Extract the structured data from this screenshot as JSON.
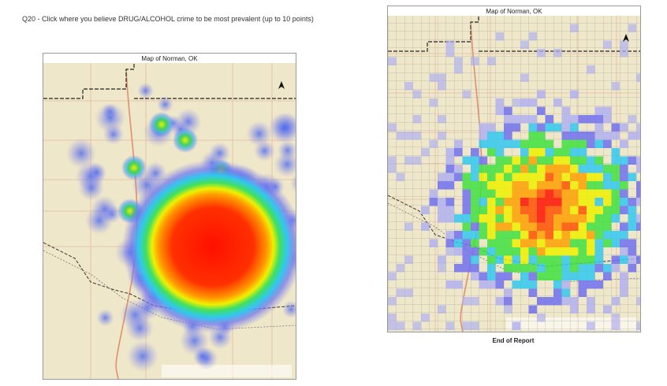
{
  "question": {
    "text": "Q20 - Click where you believe DRUG/ALCOHOL crime to be most prevalent (up to 10 points)"
  },
  "heat_map": {
    "title": "Map of Norman, OK"
  },
  "grid_map": {
    "title": "Map of Norman, OK"
  },
  "footer": {
    "text": "End of Report"
  }
}
